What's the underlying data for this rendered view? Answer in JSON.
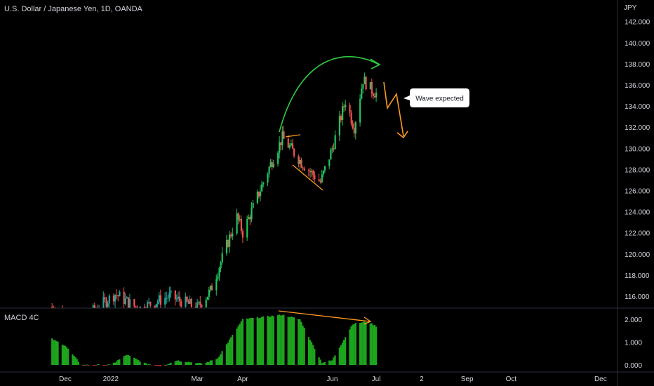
{
  "header": {
    "title": "U.S. Dollar / Japanese Yen, 1D, OANDA"
  },
  "price_axis": {
    "unit": "JPY",
    "ticks": [
      "142.000",
      "140.000",
      "138.000",
      "136.000",
      "134.000",
      "132.000",
      "130.000",
      "128.000",
      "126.000",
      "124.000",
      "122.000",
      "120.000",
      "118.000",
      "116.000"
    ]
  },
  "macd_axis": {
    "ticks": [
      "2.000",
      "1.000",
      "0.000"
    ]
  },
  "time_axis": {
    "labels": [
      "Dec",
      "2022",
      "Mar",
      "Apr",
      "Jun",
      "Jul",
      "2",
      "Sep",
      "Oct",
      "Dec"
    ]
  },
  "macd_pane": {
    "title": "MACD 4C"
  },
  "annotations": {
    "callout": "Wave expected"
  },
  "colors": {
    "background": "#000000",
    "up_candle": "#26a69a",
    "up_candle_bright": "#22c55e",
    "down_candle": "#ef5350",
    "macd_positive": "#1ea51e",
    "macd_negative": "#b02a2a",
    "arc_arrow": "#2ecc40",
    "orange_annotation": "#ff9a1f",
    "grid_separator": "#2a2e39",
    "axis_text": "#d1d4dc"
  },
  "chart_data": {
    "type": "candlestick",
    "title": "U.S. Dollar / Japanese Yen, 1D, OANDA",
    "ylabel": "JPY",
    "ylim": [
      114.9,
      143.3
    ],
    "anchors": [
      {
        "date": "2021-11-20",
        "price": 115.0
      },
      {
        "date": "2021-12-10",
        "price": 113.5
      },
      {
        "date": "2022-01-04",
        "price": 116.2
      },
      {
        "date": "2022-01-20",
        "price": 114.8
      },
      {
        "date": "2022-02-10",
        "price": 116.0
      },
      {
        "date": "2022-03-01",
        "price": 114.9
      },
      {
        "date": "2022-03-10",
        "price": 116.5
      },
      {
        "date": "2022-03-28",
        "price": 123.5
      },
      {
        "date": "2022-04-01",
        "price": 122.0
      },
      {
        "date": "2022-04-20",
        "price": 128.5
      },
      {
        "date": "2022-04-28",
        "price": 131.0
      },
      {
        "date": "2022-05-12",
        "price": 128.5
      },
      {
        "date": "2022-05-24",
        "price": 126.8
      },
      {
        "date": "2022-06-01",
        "price": 130.0
      },
      {
        "date": "2022-06-10",
        "price": 134.5
      },
      {
        "date": "2022-06-16",
        "price": 132.0
      },
      {
        "date": "2022-06-22",
        "price": 136.5
      },
      {
        "date": "2022-06-28",
        "price": 135.5
      },
      {
        "date": "2022-07-01",
        "price": 135.2
      }
    ],
    "macd": {
      "title": "MACD 4C",
      "ylim": [
        -0.1,
        2.2
      ],
      "anchors": [
        {
          "date": "2021-11-20",
          "value": 1.2
        },
        {
          "date": "2021-12-01",
          "value": 0.85
        },
        {
          "date": "2021-12-12",
          "value": 0.0
        },
        {
          "date": "2022-01-01",
          "value": 0.0
        },
        {
          "date": "2022-01-12",
          "value": 0.45
        },
        {
          "date": "2022-01-25",
          "value": 0.05
        },
        {
          "date": "2022-02-05",
          "value": -0.05
        },
        {
          "date": "2022-02-15",
          "value": 0.2
        },
        {
          "date": "2022-03-05",
          "value": 0.05
        },
        {
          "date": "2022-03-15",
          "value": 0.3
        },
        {
          "date": "2022-04-01",
          "value": 2.0
        },
        {
          "date": "2022-04-28",
          "value": 2.2
        },
        {
          "date": "2022-05-10",
          "value": 2.0
        },
        {
          "date": "2022-05-25",
          "value": 0.1
        },
        {
          "date": "2022-06-01",
          "value": 0.2
        },
        {
          "date": "2022-06-15",
          "value": 1.8
        },
        {
          "date": "2022-06-25",
          "value": 1.9
        },
        {
          "date": "2022-07-01",
          "value": 1.7
        }
      ]
    }
  }
}
